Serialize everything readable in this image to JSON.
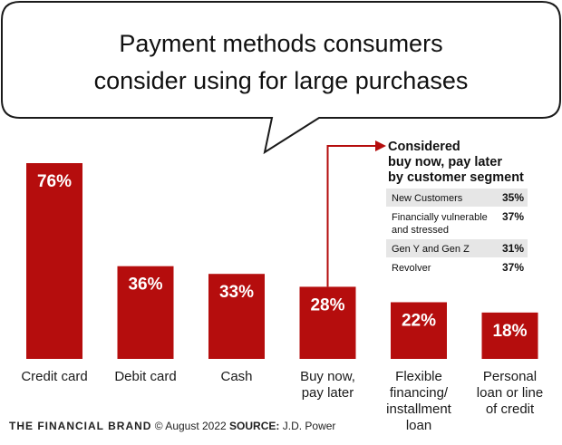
{
  "title_lines": [
    "Payment methods consumers",
    "consider using for large purchases"
  ],
  "colors": {
    "bar": "#b50d0d",
    "text": "#111111",
    "table_row_alt": "#e6e6e6"
  },
  "chart_data": {
    "type": "bar",
    "categories": [
      [
        "Credit card"
      ],
      [
        "Debit card"
      ],
      [
        "Cash"
      ],
      [
        "Buy now,",
        "pay later"
      ],
      [
        "Flexible",
        "financing/",
        "installment",
        "loan"
      ],
      [
        "Personal",
        "loan or line",
        "of credit"
      ]
    ],
    "values": [
      76,
      36,
      33,
      28,
      22,
      18
    ],
    "value_labels": [
      "76%",
      "36%",
      "33%",
      "28%",
      "22%",
      "18%"
    ],
    "ylim": [
      0,
      76
    ],
    "grid": false
  },
  "callout": {
    "heading_lines": [
      "Considered",
      "buy now, pay later",
      "by customer segment"
    ],
    "rows": [
      {
        "label": [
          "New Customers"
        ],
        "value": "35%"
      },
      {
        "label": [
          "Financially vulnerable",
          "and stressed"
        ],
        "value": "37%"
      },
      {
        "label": [
          "Gen Y and Gen Z"
        ],
        "value": "31%"
      },
      {
        "label": [
          "Revolver"
        ],
        "value": "37%"
      }
    ]
  },
  "footer": {
    "brand": "THE FINANCIAL BRAND",
    "copyright": "© August 2022",
    "source_label": "SOURCE:",
    "source": "J.D. Power"
  }
}
